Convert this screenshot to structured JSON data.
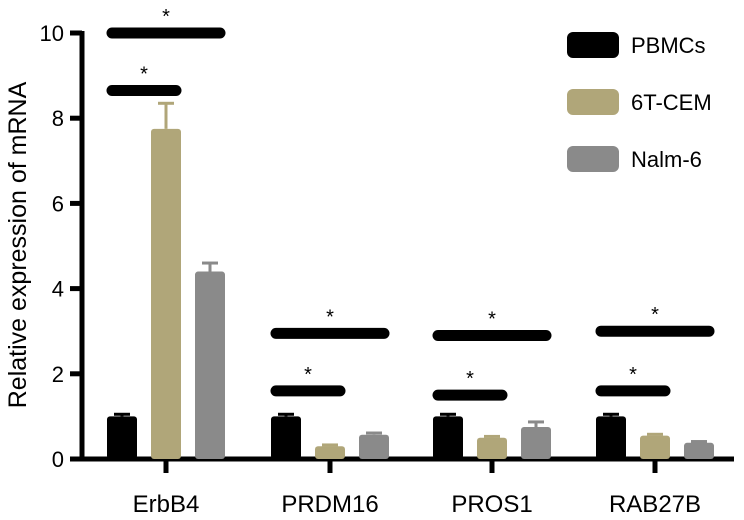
{
  "chart_data": {
    "type": "bar",
    "ylabel": "Relative expression of mRNA",
    "ylim": [
      0,
      10
    ],
    "yticks": [
      0,
      2,
      4,
      6,
      8,
      10
    ],
    "categories": [
      "ErbB4",
      "PRDM16",
      "PROS1",
      "RAB27B"
    ],
    "series": [
      {
        "name": "PBMCs",
        "color": "#000000",
        "values": [
          1.0,
          1.0,
          1.0,
          1.0
        ],
        "errors": [
          0.05,
          0.05,
          0.05,
          0.05
        ]
      },
      {
        "name": "6T-CEM",
        "color": "#b0a679",
        "values": [
          7.75,
          0.3,
          0.5,
          0.55
        ],
        "errors": [
          0.6,
          0.03,
          0.03,
          0.03
        ]
      },
      {
        "name": "Nalm-6",
        "color": "#8a8a8a",
        "values": [
          4.4,
          0.57,
          0.75,
          0.38
        ],
        "errors": [
          0.2,
          0.04,
          0.12,
          0.03
        ]
      }
    ],
    "significance": [
      {
        "category": 0,
        "from_series": 0,
        "to_series": 1,
        "y": 8.65,
        "label": "*"
      },
      {
        "category": 0,
        "from_series": 0,
        "to_series": 2,
        "y": 10.0,
        "label": "*"
      },
      {
        "category": 1,
        "from_series": 0,
        "to_series": 1,
        "y": 1.6,
        "label": "*"
      },
      {
        "category": 1,
        "from_series": 0,
        "to_series": 2,
        "y": 2.95,
        "label": "*"
      },
      {
        "category": 2,
        "from_series": 0,
        "to_series": 1,
        "y": 1.5,
        "label": "*"
      },
      {
        "category": 2,
        "from_series": 0,
        "to_series": 2,
        "y": 2.9,
        "label": "*"
      },
      {
        "category": 3,
        "from_series": 0,
        "to_series": 1,
        "y": 1.6,
        "label": "*"
      },
      {
        "category": 3,
        "from_series": 0,
        "to_series": 2,
        "y": 3.0,
        "label": "*"
      }
    ],
    "legend_position": "top-right",
    "grid": false
  }
}
